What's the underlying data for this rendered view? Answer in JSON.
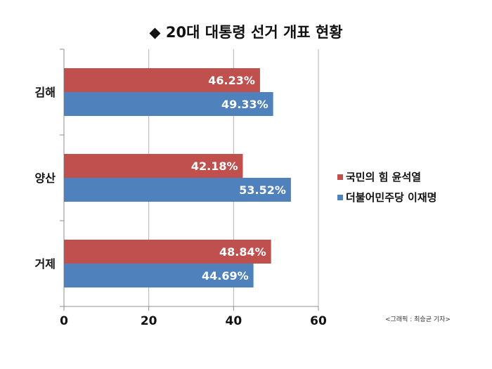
{
  "chart_data": {
    "type": "bar",
    "orientation": "horizontal",
    "title": "◆ 20대 대통령 선거 개표 현황",
    "categories": [
      "김해",
      "양산",
      "거제"
    ],
    "series": [
      {
        "name": "국민의 힘 윤석열",
        "color": "#c0504d",
        "values": [
          46.23,
          42.18,
          48.84
        ],
        "labels": [
          "46.23%",
          "42.18%",
          "48.84%"
        ]
      },
      {
        "name": "더불어민주당 이재명",
        "color": "#4f81bd",
        "values": [
          49.33,
          53.52,
          44.69
        ],
        "labels": [
          "49.33%",
          "53.52%",
          "44.69%"
        ]
      }
    ],
    "xlim": [
      0,
      60
    ],
    "xticks": [
      0,
      20,
      40,
      60
    ],
    "xtick_labels": [
      "0",
      "20",
      "40",
      "60"
    ],
    "grid": true,
    "legend_position": "right"
  },
  "credit": "<그래픽 : 최승균 기자>"
}
